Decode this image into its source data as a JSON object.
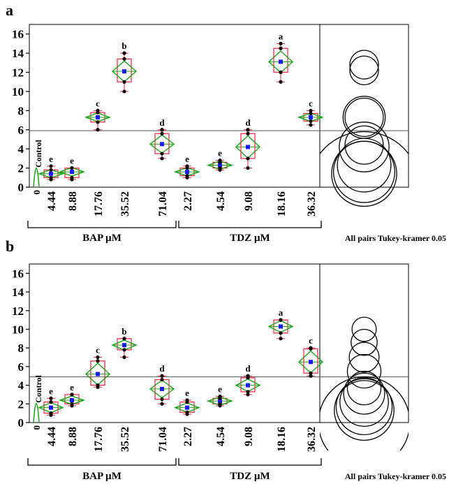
{
  "chart_data": [
    {
      "panel_label": "a",
      "type": "box",
      "ylim": [
        0,
        17
      ],
      "yticks": [
        0,
        2,
        4,
        6,
        8,
        10,
        12,
        14,
        16
      ],
      "grand_mean": 5.9,
      "control": {
        "label": "Control",
        "value": 0
      },
      "groups": [
        {
          "name": "BAP µM",
          "categories": [
            "4.44",
            "8.88",
            "17.76",
            "35.52",
            "71.04"
          ]
        },
        {
          "name": "TDZ µM",
          "categories": [
            "2.27",
            "4.54",
            "9.08",
            "18.16",
            "36.32"
          ]
        }
      ],
      "categories": [
        "4.44",
        "8.88",
        "17.76",
        "35.52",
        "71.04",
        "2.27",
        "4.54",
        "9.08",
        "18.16",
        "36.32"
      ],
      "means": [
        1.4,
        1.6,
        7.3,
        12.1,
        4.5,
        1.6,
        2.3,
        4.2,
        13.1,
        7.3
      ],
      "box_q1": [
        1.0,
        1.0,
        6.8,
        11.0,
        3.5,
        1.2,
        2.0,
        3.0,
        12.0,
        6.9
      ],
      "box_q3": [
        1.8,
        2.0,
        7.8,
        13.4,
        5.6,
        2.0,
        2.6,
        5.6,
        14.5,
        7.7
      ],
      "whisker_min": [
        0.8,
        0.8,
        6.0,
        10.0,
        3.0,
        1.0,
        1.8,
        2.0,
        11.0,
        6.5
      ],
      "whisker_max": [
        2.2,
        2.0,
        8.0,
        14.0,
        6.0,
        2.2,
        2.8,
        6.0,
        15.0,
        8.0
      ],
      "letters": [
        "e",
        "e",
        "c",
        "b",
        "d",
        "e",
        "e",
        "d",
        "a",
        "c"
      ],
      "comparison_circles": [
        {
          "center": 12.8,
          "radius": 1.5
        },
        {
          "center": 12.2,
          "radius": 1.5
        },
        {
          "center": 7.3,
          "radius": 2.0
        },
        {
          "center": 7.3,
          "radius": 2.2
        },
        {
          "center": 4.4,
          "radius": 2.0
        },
        {
          "center": 4.2,
          "radius": 2.6
        },
        {
          "center": 2.3,
          "radius": 2.8
        },
        {
          "center": 1.6,
          "radius": 3.2
        },
        {
          "center": 1.4,
          "radius": 3.4
        },
        {
          "center": 0.0,
          "radius": 5.8
        }
      ],
      "group_labels": [
        "BAP µM",
        "TDZ µM"
      ],
      "test_label": "All pairs Tukey-kramer 0.05"
    },
    {
      "panel_label": "b",
      "type": "box",
      "ylim": [
        0,
        17
      ],
      "yticks": [
        0,
        2,
        4,
        6,
        8,
        10,
        12,
        14,
        16
      ],
      "grand_mean": 4.9,
      "control": {
        "label": "Control",
        "value": 0
      },
      "groups": [
        {
          "name": "BAP µM",
          "categories": [
            "4.44",
            "8.88",
            "17.76",
            "35.52",
            "71.04"
          ]
        },
        {
          "name": "TDZ µM",
          "categories": [
            "2.27",
            "4.54",
            "9.08",
            "18.16",
            "36.32"
          ]
        }
      ],
      "categories": [
        "4.44",
        "8.88",
        "17.76",
        "35.52",
        "71.04",
        "2.27",
        "4.54",
        "9.08",
        "18.16",
        "36.32"
      ],
      "means": [
        1.6,
        2.4,
        5.2,
        8.3,
        3.6,
        1.6,
        2.3,
        4.0,
        10.3,
        6.5
      ],
      "box_q1": [
        1.0,
        2.0,
        4.0,
        7.8,
        2.5,
        1.1,
        2.0,
        3.3,
        9.6,
        5.3
      ],
      "box_q3": [
        2.2,
        3.0,
        6.6,
        9.0,
        4.6,
        2.2,
        2.6,
        4.8,
        11.0,
        7.9
      ],
      "whisker_min": [
        0.8,
        1.8,
        3.8,
        7.0,
        2.0,
        0.9,
        1.8,
        3.0,
        9.0,
        5.0
      ],
      "whisker_max": [
        2.6,
        3.0,
        7.0,
        9.0,
        5.0,
        2.4,
        2.8,
        5.0,
        11.0,
        8.0
      ],
      "letters": [
        "e",
        "e",
        "c",
        "b",
        "d",
        "e",
        "e",
        "d",
        "a",
        "c"
      ],
      "comparison_circles": [
        {
          "center": 10.0,
          "radius": 1.3
        },
        {
          "center": 8.6,
          "radius": 1.4
        },
        {
          "center": 7.0,
          "radius": 1.6
        },
        {
          "center": 5.5,
          "radius": 1.8
        },
        {
          "center": 3.7,
          "radius": 1.8
        },
        {
          "center": 3.1,
          "radius": 2.2
        },
        {
          "center": 2.2,
          "radius": 2.6
        },
        {
          "center": 1.7,
          "radius": 3.0
        },
        {
          "center": 1.3,
          "radius": 3.2
        },
        {
          "center": 0.0,
          "radius": 4.9
        }
      ],
      "group_labels": [
        "BAP µM",
        "TDZ µM"
      ],
      "test_label": "All pairs Tukey-kramer 0.05"
    }
  ],
  "colors": {
    "axis": "#000000",
    "box": "#ff1f3a",
    "diamond": "#1aa61a",
    "mean": "#1a1aff",
    "point": "#000000",
    "letter": "#000000"
  }
}
